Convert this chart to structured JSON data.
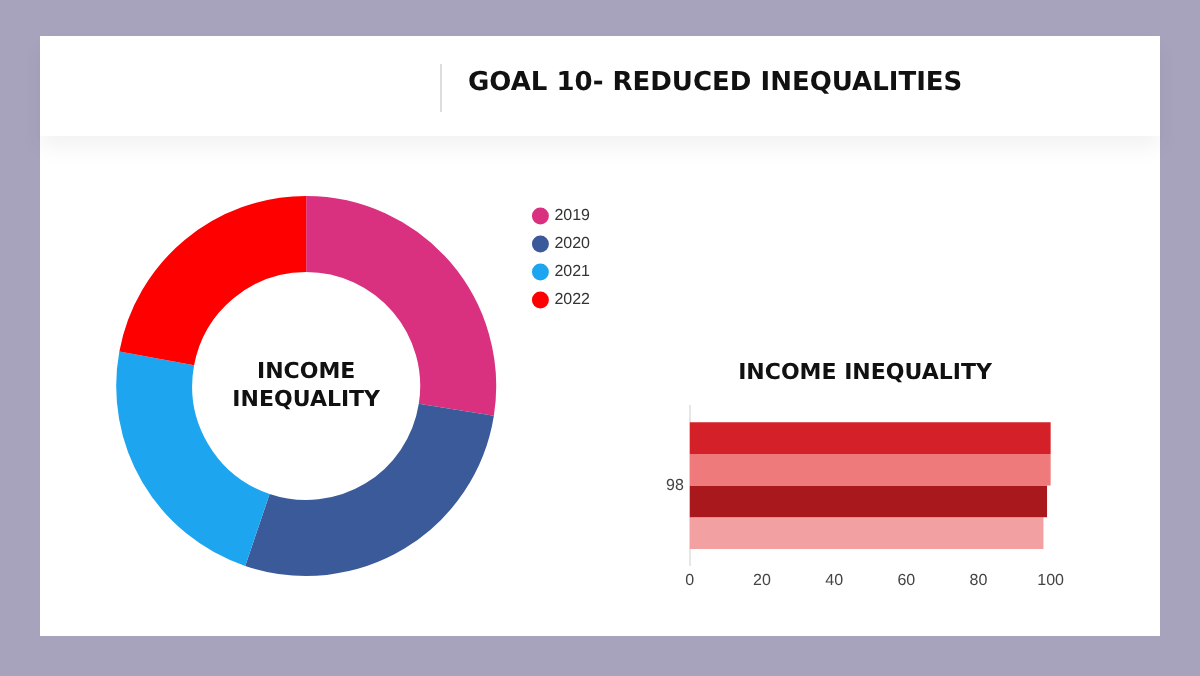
{
  "chart_data": [
    {
      "type": "donut",
      "title": "INCOME INEQUALITY",
      "annotations": [
        "GOAL 10- REDUCED INEQUALITIES"
      ],
      "categories": [
        "2019",
        "2020",
        "2021",
        "2022"
      ],
      "values": [
        27.5,
        27.7,
        22.7,
        22.1
      ],
      "colors": [
        "#d9317f",
        "#3a5a9a",
        "#1ea5f0",
        "#fe0000"
      ],
      "legend": "right"
    },
    {
      "type": "bar",
      "title": "INCOME INEQUALITY",
      "orientation": "horizontal",
      "categories": [
        "98"
      ],
      "series": [
        {
          "color": "#d42028",
          "values": [
            100
          ]
        },
        {
          "color": "#ee7a7c",
          "values": [
            100
          ]
        },
        {
          "color": "#a8181c",
          "values": [
            99
          ]
        },
        {
          "color": "#f2a0a2",
          "values": [
            98
          ]
        }
      ],
      "xlim": [
        0,
        100
      ],
      "xticks": [
        0,
        20,
        40,
        60,
        80,
        100
      ]
    }
  ]
}
